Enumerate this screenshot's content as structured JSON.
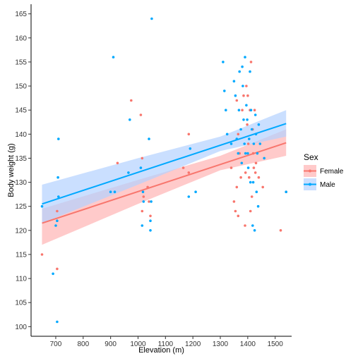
{
  "chart_data": {
    "type": "scatter",
    "title": "",
    "xlabel": "Elevation (m)",
    "ylabel": "Body weight (g)",
    "xlim": [
      610,
      1560
    ],
    "ylim": [
      98,
      167
    ],
    "x_ticks": [
      700,
      800,
      900,
      1000,
      1100,
      1200,
      1300,
      1400,
      1500
    ],
    "y_ticks": [
      100,
      105,
      110,
      115,
      120,
      125,
      130,
      135,
      140,
      145,
      150,
      155,
      160,
      165
    ],
    "grid": false,
    "legend": {
      "title": "Sex",
      "placement": "right",
      "entries": [
        "Female",
        "Male"
      ]
    },
    "series": [
      {
        "name": "Female",
        "color": "#F8766D",
        "band_color": "#FFB3B3",
        "fit": {
          "x": [
            650,
            1540
          ],
          "y": [
            121.5,
            138.2
          ]
        },
        "band": {
          "x": [
            650,
            1000,
            1300,
            1540
          ],
          "upper": [
            124.5,
            130.5,
            135.5,
            141.0
          ],
          "lower": [
            117.0,
            125.5,
            132.5,
            135.5
          ]
        },
        "points": [
          [
            650,
            115
          ],
          [
            705,
            112
          ],
          [
            705,
            124
          ],
          [
            925,
            134
          ],
          [
            975,
            147
          ],
          [
            1010,
            144
          ],
          [
            1015,
            135
          ],
          [
            1015,
            124
          ],
          [
            1020,
            127
          ],
          [
            1035,
            129
          ],
          [
            1040,
            126
          ],
          [
            1045,
            123
          ],
          [
            1165,
            133
          ],
          [
            1185,
            140
          ],
          [
            1185,
            132
          ],
          [
            1340,
            133
          ],
          [
            1350,
            126
          ],
          [
            1355,
            124
          ],
          [
            1360,
            129
          ],
          [
            1365,
            123
          ],
          [
            1360,
            147
          ],
          [
            1365,
            140
          ],
          [
            1370,
            136
          ],
          [
            1375,
            131
          ],
          [
            1380,
            145
          ],
          [
            1385,
            148
          ],
          [
            1390,
            121
          ],
          [
            1392,
            132
          ],
          [
            1395,
            150
          ],
          [
            1398,
            142
          ],
          [
            1400,
            148
          ],
          [
            1402,
            138
          ],
          [
            1405,
            131
          ],
          [
            1408,
            145
          ],
          [
            1410,
            124
          ],
          [
            1412,
            155
          ],
          [
            1415,
            127
          ],
          [
            1418,
            141
          ],
          [
            1420,
            136
          ],
          [
            1422,
            133
          ],
          [
            1425,
            145
          ],
          [
            1428,
            132
          ],
          [
            1430,
            134
          ],
          [
            1440,
            131
          ],
          [
            1455,
            129
          ],
          [
            1520,
            120
          ],
          [
            1540,
            128
          ]
        ]
      },
      {
        "name": "Male",
        "color": "#00A9FF",
        "band_color": "#B3D1FF",
        "fit": {
          "x": [
            650,
            1540
          ],
          "y": [
            125.5,
            142.2
          ]
        },
        "band": {
          "x": [
            650,
            1000,
            1300,
            1540
          ],
          "upper": [
            129.5,
            135.0,
            139.5,
            145.0
          ],
          "lower": [
            121.5,
            129.5,
            136.5,
            139.5
          ]
        },
        "points": [
          [
            650,
            125
          ],
          [
            690,
            111
          ],
          [
            700,
            121
          ],
          [
            705,
            101
          ],
          [
            705,
            122
          ],
          [
            708,
            131
          ],
          [
            710,
            127
          ],
          [
            710,
            139
          ],
          [
            900,
            128
          ],
          [
            910,
            156
          ],
          [
            915,
            128
          ],
          [
            965,
            132
          ],
          [
            970,
            143
          ],
          [
            1010,
            133
          ],
          [
            1015,
            121
          ],
          [
            1018,
            128
          ],
          [
            1020,
            126
          ],
          [
            1040,
            139
          ],
          [
            1045,
            120
          ],
          [
            1045,
            122
          ],
          [
            1048,
            126
          ],
          [
            1050,
            164
          ],
          [
            1185,
            127
          ],
          [
            1190,
            137
          ],
          [
            1210,
            128
          ],
          [
            1310,
            155
          ],
          [
            1315,
            149
          ],
          [
            1320,
            145
          ],
          [
            1325,
            140
          ],
          [
            1340,
            138
          ],
          [
            1350,
            151
          ],
          [
            1355,
            148
          ],
          [
            1360,
            139
          ],
          [
            1365,
            136
          ],
          [
            1368,
            145
          ],
          [
            1370,
            153
          ],
          [
            1375,
            141
          ],
          [
            1378,
            134
          ],
          [
            1380,
            154
          ],
          [
            1382,
            150
          ],
          [
            1385,
            143
          ],
          [
            1388,
            138
          ],
          [
            1390,
            156
          ],
          [
            1392,
            136
          ],
          [
            1395,
            146
          ],
          [
            1398,
            143
          ],
          [
            1400,
            136
          ],
          [
            1402,
            133
          ],
          [
            1405,
            139
          ],
          [
            1408,
            153
          ],
          [
            1410,
            130
          ],
          [
            1412,
            145
          ],
          [
            1415,
            141
          ],
          [
            1418,
            121
          ],
          [
            1420,
            130
          ],
          [
            1422,
            138
          ],
          [
            1425,
            120
          ],
          [
            1428,
            144
          ],
          [
            1430,
            140
          ],
          [
            1432,
            128
          ],
          [
            1435,
            136
          ],
          [
            1438,
            125
          ],
          [
            1440,
            142
          ],
          [
            1445,
            138
          ],
          [
            1460,
            135
          ],
          [
            1540,
            128
          ]
        ]
      }
    ]
  }
}
